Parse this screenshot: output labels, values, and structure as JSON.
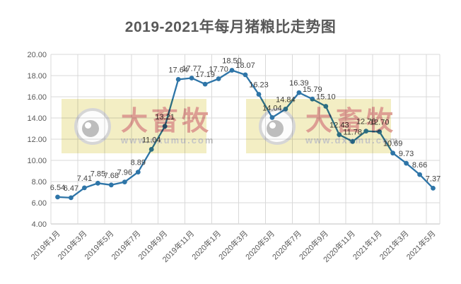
{
  "watermark": {
    "brand": "大畜牧",
    "url": "www.dxumu.com"
  },
  "chart_data": {
    "type": "line",
    "title": "2019-2021年每月猪粮比走势图",
    "x_tick_labels": [
      "2019年1月",
      "2019年3月",
      "2019年5月",
      "2019年7月",
      "2019年9月",
      "2019年11月",
      "2020年1月",
      "2020年3月",
      "2020年5月",
      "2020年7月",
      "2020年9月",
      "2020年11月",
      "2021年1月",
      "2021年3月",
      "2021年5月"
    ],
    "x_tick_every": 2,
    "values": [
      6.54,
      6.47,
      7.41,
      7.85,
      7.68,
      7.96,
      8.89,
      11.04,
      13.21,
      17.64,
      17.77,
      17.19,
      17.7,
      18.5,
      18.07,
      16.23,
      14.04,
      14.84,
      16.39,
      15.79,
      15.1,
      12.43,
      11.78,
      12.76,
      12.7,
      10.69,
      9.73,
      8.66,
      7.37
    ],
    "data_labels": true,
    "ylim": [
      4,
      20
    ],
    "y_tick_step": 2,
    "grid": true,
    "legend": false,
    "colors": {
      "line": "#2e75a8",
      "grid": "#d9d9d9",
      "axis_line": "#c0c0c0",
      "axis_text": "#595959",
      "data_label_text": "#3f3f3f",
      "title_text": "#595959",
      "watermark_panel": "#f3eec4",
      "watermark_brand": "#dd9e93",
      "watermark_url": "#c6c6c6"
    }
  }
}
